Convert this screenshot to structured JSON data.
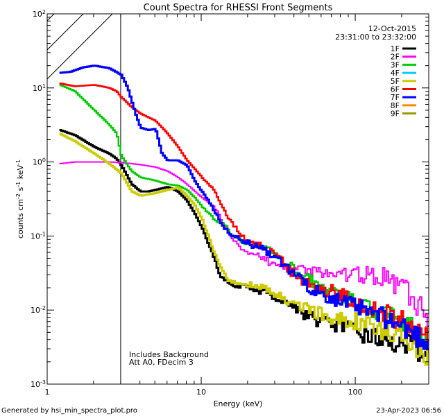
{
  "chart_data": {
    "type": "line",
    "title": "Count Spectra for RHESSI Front Segments",
    "xlabel": "Energy (keV)",
    "ylabel_parts": [
      "counts cm",
      "-2",
      " s",
      "-1",
      " keV",
      "-1"
    ],
    "xscale": "log",
    "yscale": "log",
    "xlim": [
      1.0,
      300.0
    ],
    "ylim": [
      0.001,
      100.0
    ],
    "x_ticks": [
      {
        "v": 1,
        "label": "1"
      },
      {
        "v": 10,
        "label": "10"
      },
      {
        "v": 100,
        "label": "100"
      }
    ],
    "y_ticks": [
      {
        "v": 0.001,
        "base": "10",
        "exp": "-3"
      },
      {
        "v": 0.01,
        "base": "10",
        "exp": "-2"
      },
      {
        "v": 0.1,
        "base": "10",
        "exp": "-1"
      },
      {
        "v": 1,
        "base": "10",
        "exp": "0"
      },
      {
        "v": 10,
        "base": "10",
        "exp": "1"
      },
      {
        "v": 100,
        "base": "10",
        "exp": "2"
      }
    ],
    "date": "12-Oct-2015",
    "time_range": "23:31:00 to 23:32:00",
    "shaded_region": {
      "x_min": 1.0,
      "x_max": 3.0,
      "pattern": "diagonal-hatch"
    },
    "annotations": [
      "Includes Background",
      "Att A0, FDecim 3"
    ],
    "series": [
      {
        "name": "1F",
        "color": "#000000",
        "points": [
          [
            1.2,
            2.7
          ],
          [
            1.5,
            2.3
          ],
          [
            2,
            1.6
          ],
          [
            2.5,
            1.3
          ],
          [
            2.8,
            1.1
          ],
          [
            3,
            0.9
          ],
          [
            3.5,
            0.5
          ],
          [
            4,
            0.4
          ],
          [
            4.5,
            0.4
          ],
          [
            5,
            0.42
          ],
          [
            6,
            0.46
          ],
          [
            7,
            0.4
          ],
          [
            8,
            0.3
          ],
          [
            9,
            0.2
          ],
          [
            10,
            0.13
          ],
          [
            11,
            0.08
          ],
          [
            12,
            0.05
          ],
          [
            13,
            0.03
          ],
          [
            14,
            0.025
          ],
          [
            16,
            0.022
          ],
          [
            20,
            0.02
          ],
          [
            25,
            0.018
          ],
          [
            30,
            0.015
          ],
          [
            40,
            0.011
          ],
          [
            50,
            0.008
          ],
          [
            60,
            0.007
          ],
          [
            80,
            0.006
          ],
          [
            100,
            0.005
          ],
          [
            150,
            0.004
          ],
          [
            200,
            0.0035
          ],
          [
            250,
            0.003
          ],
          [
            300,
            0.0027
          ]
        ]
      },
      {
        "name": "2F",
        "color": "#ff00ff",
        "points": [
          [
            1.2,
            0.95
          ],
          [
            1.5,
            1.0
          ],
          [
            2,
            1.0
          ],
          [
            2.5,
            1.0
          ],
          [
            3,
            0.98
          ],
          [
            3.5,
            0.95
          ],
          [
            4,
            0.92
          ],
          [
            5,
            0.85
          ],
          [
            6,
            0.75
          ],
          [
            7,
            0.62
          ],
          [
            8,
            0.5
          ],
          [
            9,
            0.4
          ],
          [
            10,
            0.33
          ],
          [
            12,
            0.25
          ],
          [
            14,
            0.14
          ],
          [
            16,
            0.09
          ],
          [
            18,
            0.07
          ],
          [
            20,
            0.06
          ],
          [
            25,
            0.05
          ],
          [
            30,
            0.04
          ],
          [
            40,
            0.036
          ],
          [
            50,
            0.034
          ],
          [
            60,
            0.032
          ],
          [
            80,
            0.03
          ],
          [
            100,
            0.03
          ],
          [
            120,
            0.03
          ],
          [
            150,
            0.028
          ],
          [
            200,
            0.02
          ],
          [
            250,
            0.012
          ],
          [
            300,
            0.008
          ]
        ]
      },
      {
        "name": "3F",
        "color": "#00cc00",
        "points": [
          [
            1.2,
            11.0
          ],
          [
            1.5,
            9.0
          ],
          [
            2,
            5.0
          ],
          [
            2.5,
            3.2
          ],
          [
            2.8,
            2.4
          ],
          [
            3,
            1.2
          ],
          [
            3.5,
            0.75
          ],
          [
            4,
            0.62
          ],
          [
            5,
            0.56
          ],
          [
            6,
            0.5
          ],
          [
            7,
            0.48
          ],
          [
            8,
            0.42
          ],
          [
            9,
            0.33
          ],
          [
            10,
            0.25
          ],
          [
            12,
            0.17
          ],
          [
            14,
            0.14
          ],
          [
            16,
            0.1
          ],
          [
            20,
            0.08
          ],
          [
            25,
            0.07
          ],
          [
            30,
            0.055
          ],
          [
            40,
            0.035
          ],
          [
            50,
            0.025
          ],
          [
            60,
            0.02
          ],
          [
            80,
            0.016
          ],
          [
            100,
            0.012
          ],
          [
            150,
            0.009
          ],
          [
            200,
            0.007
          ],
          [
            250,
            0.005
          ],
          [
            300,
            0.0035
          ]
        ]
      },
      {
        "name": "4F",
        "color": "#00ccff",
        "points": []
      },
      {
        "name": "5F",
        "color": "#cccc00",
        "points": [
          [
            1.2,
            2.4
          ],
          [
            1.5,
            1.9
          ],
          [
            2,
            1.3
          ],
          [
            2.5,
            0.95
          ],
          [
            3,
            0.7
          ],
          [
            3.5,
            0.4
          ],
          [
            4,
            0.35
          ],
          [
            5,
            0.38
          ],
          [
            6,
            0.42
          ],
          [
            7,
            0.45
          ],
          [
            8,
            0.35
          ],
          [
            9,
            0.26
          ],
          [
            10,
            0.17
          ],
          [
            11,
            0.1
          ],
          [
            12,
            0.06
          ],
          [
            13,
            0.04
          ],
          [
            15,
            0.025
          ],
          [
            20,
            0.022
          ],
          [
            25,
            0.02
          ],
          [
            30,
            0.016
          ],
          [
            40,
            0.012
          ],
          [
            50,
            0.01
          ],
          [
            70,
            0.008
          ],
          [
            100,
            0.007
          ],
          [
            150,
            0.005
          ],
          [
            200,
            0.004
          ],
          [
            250,
            0.003
          ],
          [
            300,
            0.0025
          ]
        ]
      },
      {
        "name": "6F",
        "color": "#ff0000",
        "points": [
          [
            1.2,
            11.5
          ],
          [
            1.5,
            10.5
          ],
          [
            2,
            11.0
          ],
          [
            2.5,
            10.0
          ],
          [
            2.8,
            9.0
          ],
          [
            3,
            7.5
          ],
          [
            3.5,
            5.5
          ],
          [
            4,
            4.5
          ],
          [
            5,
            3.6
          ],
          [
            6,
            2.4
          ],
          [
            7,
            1.6
          ],
          [
            8,
            1.05
          ],
          [
            9,
            0.8
          ],
          [
            10,
            0.62
          ],
          [
            12,
            0.42
          ],
          [
            14,
            0.22
          ],
          [
            16,
            0.14
          ],
          [
            18,
            0.1
          ],
          [
            20,
            0.085
          ],
          [
            25,
            0.07
          ],
          [
            30,
            0.055
          ],
          [
            40,
            0.03
          ],
          [
            50,
            0.022
          ],
          [
            60,
            0.02
          ],
          [
            80,
            0.016
          ],
          [
            100,
            0.013
          ],
          [
            150,
            0.009
          ],
          [
            200,
            0.007
          ],
          [
            250,
            0.005
          ],
          [
            300,
            0.004
          ]
        ]
      },
      {
        "name": "7F",
        "color": "#0000ff",
        "points": [
          [
            1.2,
            16.0
          ],
          [
            1.4,
            16.5
          ],
          [
            1.7,
            19.0
          ],
          [
            2,
            20.0
          ],
          [
            2.5,
            18.5
          ],
          [
            3,
            15.0
          ],
          [
            3.3,
            10.0
          ],
          [
            3.7,
            4.5
          ],
          [
            4,
            2.9
          ],
          [
            4.5,
            2.7
          ],
          [
            5,
            2.8
          ],
          [
            5.5,
            1.3
          ],
          [
            6,
            1.05
          ],
          [
            7,
            1.05
          ],
          [
            8,
            0.9
          ],
          [
            9,
            0.55
          ],
          [
            10,
            0.4
          ],
          [
            11,
            0.3
          ],
          [
            12,
            0.22
          ],
          [
            14,
            0.13
          ],
          [
            16,
            0.1
          ],
          [
            20,
            0.08
          ],
          [
            25,
            0.065
          ],
          [
            30,
            0.05
          ],
          [
            40,
            0.03
          ],
          [
            50,
            0.02
          ],
          [
            60,
            0.017
          ],
          [
            80,
            0.013
          ],
          [
            100,
            0.011
          ],
          [
            150,
            0.008
          ],
          [
            200,
            0.006
          ],
          [
            250,
            0.0045
          ],
          [
            300,
            0.0035
          ]
        ]
      },
      {
        "name": "8F",
        "color": "#ff8800",
        "points": []
      },
      {
        "name": "9F",
        "color": "#999900",
        "points": []
      }
    ]
  },
  "footer": {
    "generator": "Generated by hsi_min_spectra_plot.pro",
    "timestamp": "23-Apr-2023 06:56"
  }
}
